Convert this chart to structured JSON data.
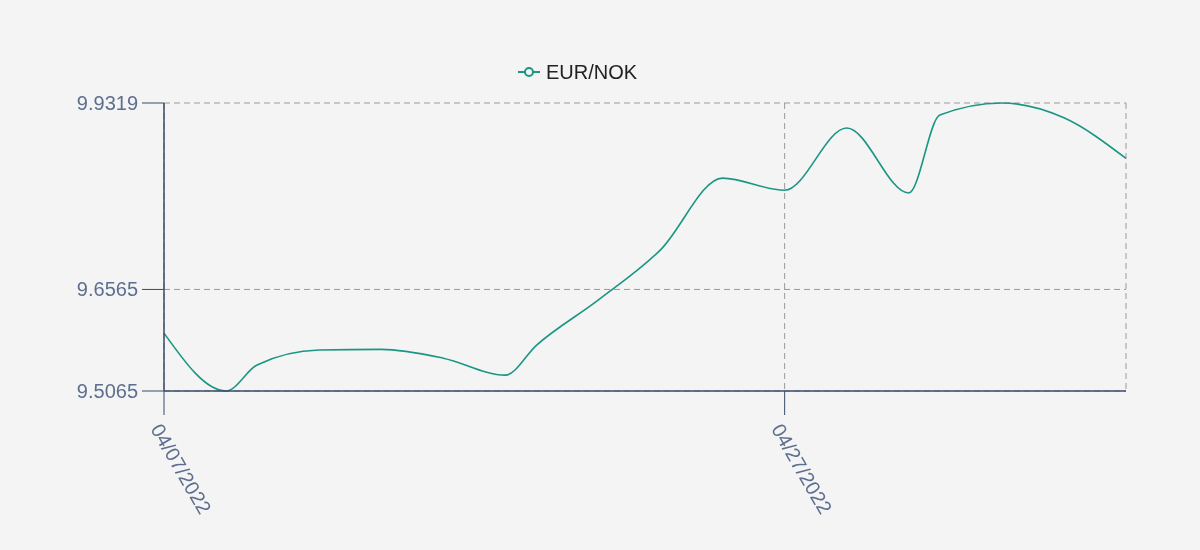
{
  "chart_data": {
    "type": "line",
    "x": [
      "2022-04-07",
      "2022-04-09",
      "2022-04-10",
      "2022-04-12",
      "2022-04-14",
      "2022-04-16",
      "2022-04-18",
      "2022-04-19",
      "2022-04-21",
      "2022-04-23",
      "2022-04-25",
      "2022-04-27",
      "2022-04-29",
      "2022-05-01",
      "2022-05-02",
      "2022-05-04",
      "2022-05-06",
      "2022-05-08"
    ],
    "series": [
      {
        "name": "EUR/NOK",
        "color": "#1a9683",
        "values": [
          9.592,
          9.5065,
          9.545,
          9.567,
          9.568,
          9.555,
          9.53,
          9.574,
          9.641,
          9.715,
          9.821,
          9.803,
          9.895,
          9.799,
          9.914,
          9.9319,
          9.91,
          9.85
        ]
      }
    ],
    "xlim": [
      "2022-04-07",
      "2022-05-08"
    ],
    "xticks": [
      {
        "value": "2022-04-07",
        "label": "04/07/2022"
      },
      {
        "value": "2022-04-27",
        "label": "04/27/2022"
      }
    ],
    "ylim": [
      9.5065,
      9.9319
    ],
    "yticks": [
      9.5065,
      9.6565,
      9.9319
    ],
    "grid": true,
    "legend": "top",
    "line_style": "solid"
  }
}
